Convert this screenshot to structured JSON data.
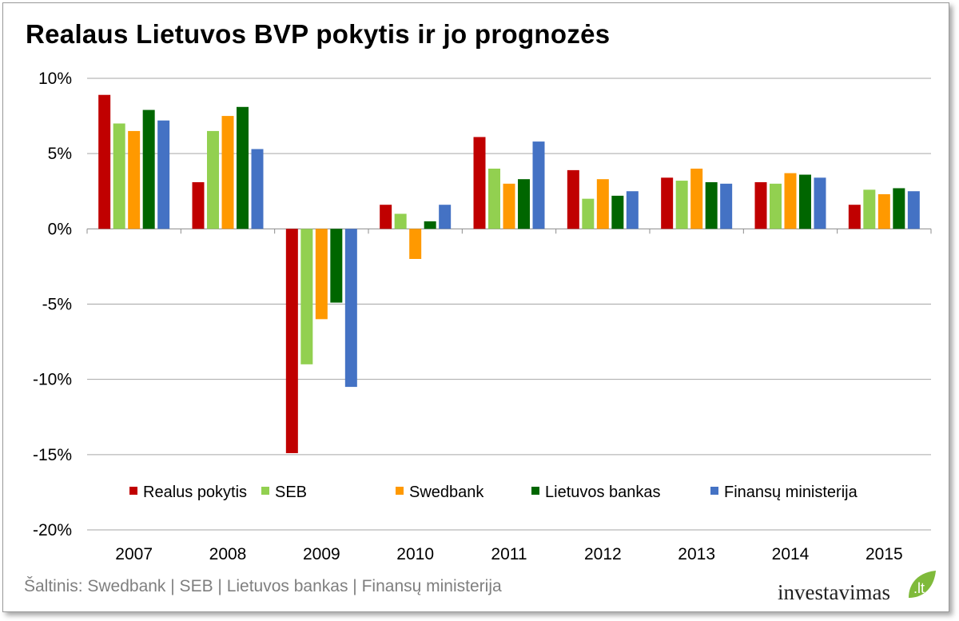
{
  "title": "Realaus Lietuvos BVP pokytis ir jo prognozės",
  "source": "Šaltinis: Swedbank | SEB | Lietuvos bankas | Finansų ministerija",
  "logo": {
    "text": "investavimas",
    "suffix": ".lt"
  },
  "colors": {
    "Realus pokytis": "#c00000",
    "SEB": "#92d050",
    "Swedbank": "#ff9900",
    "Lietuvos bankas": "#006600",
    "Finansų ministerija": "#4472c4",
    "grid": "#a6a6a6",
    "logo_green": "#7fba3b"
  },
  "chart_data": {
    "type": "bar",
    "title": "Realaus Lietuvos BVP pokytis ir jo prognozės",
    "xlabel": "",
    "ylabel": "",
    "ylim": [
      -20,
      10
    ],
    "yticks": [
      "10%",
      "5%",
      "0%",
      "-5%",
      "-10%",
      "-15%",
      "-20%"
    ],
    "ytick_values": [
      10,
      5,
      0,
      -5,
      -10,
      -15,
      -20
    ],
    "grid": true,
    "legend_position": "inside-bottom",
    "categories": [
      "2007",
      "2008",
      "2009",
      "2010",
      "2011",
      "2012",
      "2013",
      "2014",
      "2015"
    ],
    "series": [
      {
        "name": "Realus pokytis",
        "values": [
          8.9,
          3.1,
          -14.9,
          1.6,
          6.1,
          3.9,
          3.4,
          3.1,
          1.6
        ]
      },
      {
        "name": "SEB",
        "values": [
          7.0,
          6.5,
          -9.0,
          1.0,
          4.0,
          2.0,
          3.2,
          3.0,
          2.6
        ]
      },
      {
        "name": "Swedbank",
        "values": [
          6.5,
          7.5,
          -6.0,
          -2.0,
          3.0,
          3.3,
          4.0,
          3.7,
          2.3
        ]
      },
      {
        "name": "Lietuvos bankas",
        "values": [
          7.9,
          8.1,
          -4.9,
          0.5,
          3.3,
          2.2,
          3.1,
          3.6,
          2.7
        ]
      },
      {
        "name": "Finansų ministerija",
        "values": [
          7.2,
          5.3,
          -10.5,
          1.6,
          5.8,
          2.5,
          3.0,
          3.4,
          2.5
        ]
      }
    ]
  }
}
